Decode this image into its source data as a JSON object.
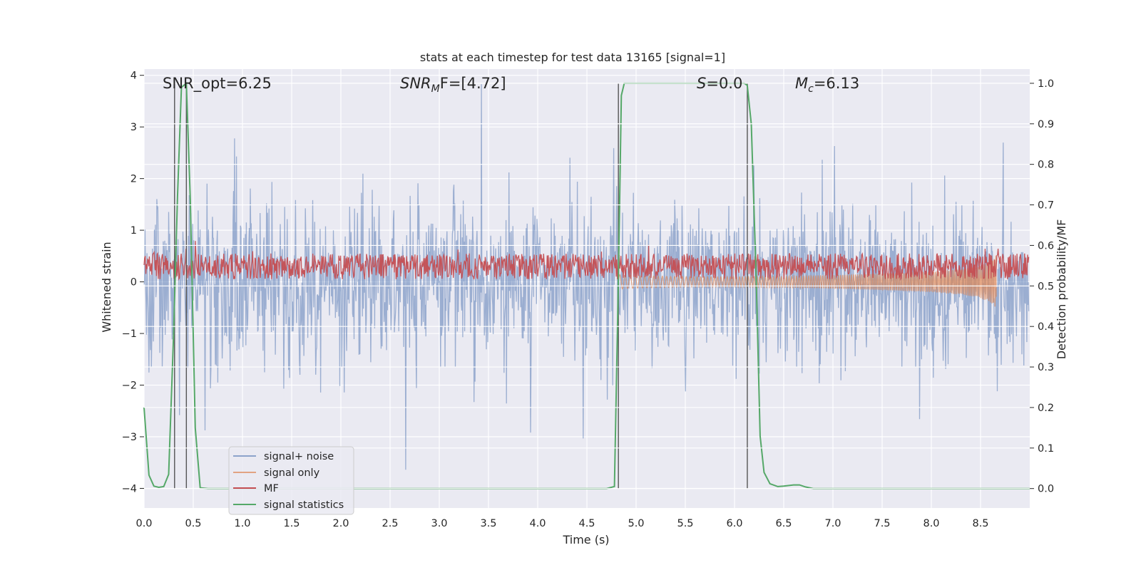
{
  "chart_data": {
    "type": "line",
    "title": "stats at each timestep for test data 13165 [signal=1]",
    "xlabel": "Time (s)",
    "ylabel": "Whitened strain",
    "y2label": "Detection probability/MF",
    "xlim": [
      0.0,
      9.0
    ],
    "ylim": [
      -4.38,
      4.12
    ],
    "y2lim": [
      -0.048,
      1.035
    ],
    "grid": true,
    "x_ticks": [
      "0.0",
      "0.5",
      "1.0",
      "1.5",
      "2.0",
      "2.5",
      "3.0",
      "3.5",
      "4.0",
      "4.5",
      "5.0",
      "5.5",
      "6.0",
      "6.5",
      "7.0",
      "7.5",
      "8.0",
      "8.5"
    ],
    "y_ticks": [
      "4",
      "3",
      "2",
      "1",
      "0",
      "−1",
      "−2",
      "−3",
      "−4"
    ],
    "y2_ticks": [
      "1.0",
      "0.9",
      "0.8",
      "0.7",
      "0.6",
      "0.5",
      "0.4",
      "0.3",
      "0.2",
      "0.1",
      "0.0"
    ],
    "annotations": {
      "snr_opt": "SNR_opt=6.25",
      "snr_mf_name": "SNR",
      "snr_mf_sub": "M",
      "snr_mf_rest": "F=[4.72]",
      "s_name": "S",
      "s_rest": "=0.0",
      "mc_name": "M",
      "mc_sub": "c",
      "mc_rest": "=6.13"
    },
    "vlines_x": [
      0.31,
      0.43,
      4.82,
      6.13
    ],
    "legend": {
      "position": "lower-left",
      "entries": [
        "signal+ noise",
        "signal only",
        "MF",
        "signal statistics"
      ]
    },
    "colors": {
      "noise": "#4c72b0",
      "signal": "#dd8452",
      "mf": "#c44e52",
      "stat": "#55a868",
      "plot_bg": "#eaeaf2",
      "grid": "#ffffff",
      "vline": "#555555"
    },
    "series": [
      {
        "name": "signal statistics",
        "axis": "y2",
        "x": [
          0.0,
          0.05,
          0.1,
          0.15,
          0.2,
          0.25,
          0.3,
          0.34,
          0.38,
          0.43,
          0.47,
          0.52,
          0.57,
          0.65,
          1.0,
          2.0,
          3.0,
          4.0,
          4.7,
          4.78,
          4.82,
          4.85,
          4.88,
          5.0,
          5.5,
          6.0,
          6.1,
          6.13,
          6.17,
          6.22,
          6.26,
          6.3,
          6.36,
          6.44,
          6.5,
          6.6,
          6.66,
          6.72,
          6.8,
          7.0,
          8.0,
          9.0
        ],
        "values": [
          0.2,
          0.033,
          0.006,
          0.003,
          0.005,
          0.035,
          0.38,
          0.72,
          0.99,
          1.0,
          0.71,
          0.15,
          0.002,
          0.0,
          0.0,
          0.0,
          0.0,
          0.0,
          0.0,
          0.005,
          0.52,
          0.97,
          1.0,
          1.0,
          1.0,
          1.0,
          1.0,
          0.995,
          0.9,
          0.52,
          0.13,
          0.04,
          0.012,
          0.005,
          0.006,
          0.009,
          0.009,
          0.004,
          0.0,
          0.0,
          0.0,
          0.0
        ]
      },
      {
        "name": "signal only",
        "axis": "y",
        "x": [
          4.82,
          5.0,
          5.5,
          6.0,
          6.5,
          7.0,
          7.5,
          8.0,
          8.3,
          8.5,
          8.6,
          8.66
        ],
        "values": [
          0.14,
          0.12,
          0.1,
          0.1,
          0.11,
          0.13,
          0.16,
          0.2,
          0.25,
          0.32,
          0.4,
          0.52
        ]
      },
      {
        "name": "signal+ noise",
        "axis": "y",
        "x_range": [
          0.0,
          8.99
        ],
        "typical_range": [
          -2.0,
          2.0
        ],
        "peak_max": 3.9,
        "peak_min": -4.0
      },
      {
        "name": "MF",
        "axis": "y",
        "x_range": [
          0.0,
          8.99
        ],
        "typical_range": [
          0.0,
          0.5
        ],
        "peak_max": 1.0
      }
    ]
  }
}
